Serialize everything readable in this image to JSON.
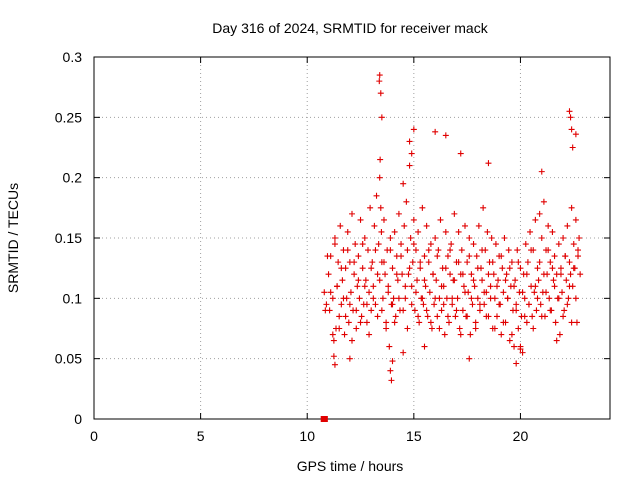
{
  "chart_data": {
    "type": "scatter",
    "title": "Day 316 of 2024, SRMTID for receiver mack",
    "xlabel": "GPS time / hours",
    "ylabel": "SRMTID / TECUs",
    "xlim": [
      0,
      24.2
    ],
    "ylim": [
      0,
      0.3
    ],
    "x_ticks": [
      0,
      5,
      10,
      15,
      20
    ],
    "x_tick_labels": [
      "0",
      "5",
      "10",
      "15",
      "20"
    ],
    "y_ticks": [
      0,
      0.05,
      0.1,
      0.15,
      0.2,
      0.25,
      0.3
    ],
    "y_tick_labels": [
      "0",
      "0.05",
      "0.1",
      "0.15",
      "0.2",
      "0.25",
      "0.3"
    ],
    "grid": true,
    "legend": "none",
    "marker": "plus",
    "color": "#e00000",
    "zero_markers": {
      "x": [
        10.75,
        10.85
      ],
      "y": [
        0,
        0
      ]
    },
    "series": [
      {
        "x": [
          10.8,
          10.9,
          11.0,
          11.05,
          11.1,
          11.2,
          11.25,
          11.3,
          11.35,
          11.4,
          11.45,
          11.5,
          11.55,
          11.6,
          11.65,
          11.7,
          11.75,
          11.8,
          11.85,
          11.9,
          11.95,
          12.0,
          12.05,
          12.1,
          12.15,
          12.2,
          12.25,
          12.3,
          12.35,
          12.4,
          12.45,
          12.5,
          12.55,
          12.6,
          12.65,
          12.7,
          12.75,
          12.8,
          12.85,
          12.9,
          12.95,
          13.0,
          13.05,
          13.1,
          13.15,
          13.2,
          13.25,
          13.3,
          13.35,
          13.4,
          13.42,
          13.45,
          13.48,
          13.5,
          13.55,
          13.6,
          13.65,
          13.7,
          13.75,
          13.8,
          13.85,
          13.9,
          13.95,
          14.0,
          14.05,
          14.1,
          14.15,
          14.2,
          14.25,
          14.3,
          14.35,
          14.4,
          14.45,
          14.5,
          14.55,
          14.6,
          14.65,
          14.7,
          14.75,
          14.8,
          14.85,
          14.9,
          14.95,
          15.0,
          15.05,
          15.1,
          15.15,
          15.2,
          15.25,
          15.3,
          15.35,
          15.4,
          15.45,
          15.5,
          15.55,
          15.6,
          15.65,
          15.7,
          15.75,
          15.8,
          15.85,
          15.9,
          15.95,
          16.0,
          16.05,
          16.1,
          16.15,
          16.2,
          16.25,
          16.3,
          16.35,
          16.4,
          16.45,
          16.5,
          16.55,
          16.6,
          16.65,
          16.7,
          16.75,
          16.8,
          16.85,
          16.9,
          16.95,
          17.0,
          17.05,
          17.1,
          17.15,
          17.2,
          17.25,
          17.3,
          17.35,
          17.4,
          17.45,
          17.5,
          17.55,
          17.6,
          17.65,
          17.7,
          17.75,
          17.8,
          17.85,
          17.9,
          17.95,
          18.0,
          18.05,
          18.1,
          18.15,
          18.2,
          18.25,
          18.3,
          18.35,
          18.4,
          18.45,
          18.5,
          18.55,
          18.6,
          18.65,
          18.7,
          18.75,
          18.8,
          18.85,
          18.9,
          18.95,
          19.0,
          19.05,
          19.1,
          19.15,
          19.2,
          19.25,
          19.3,
          19.35,
          19.4,
          19.45,
          19.5,
          19.55,
          19.6,
          19.65,
          19.7,
          19.75,
          19.8,
          19.85,
          19.9,
          19.95,
          20.0,
          20.05,
          20.1,
          20.15,
          20.2,
          20.25,
          20.3,
          20.35,
          20.4,
          20.45,
          20.5,
          20.55,
          20.6,
          20.65,
          20.7,
          20.75,
          20.8,
          20.85,
          20.9,
          20.95,
          21.0,
          21.05,
          21.1,
          21.15,
          21.2,
          21.25,
          21.3,
          21.35,
          21.4,
          21.45,
          21.5,
          21.55,
          21.6,
          21.65,
          21.7,
          21.75,
          21.8,
          21.85,
          21.9,
          21.95,
          22.0,
          22.05,
          22.1,
          22.15,
          22.2,
          22.25,
          22.3,
          22.35,
          22.4,
          22.45,
          22.5,
          22.55,
          22.6,
          22.65,
          22.7,
          22.75,
          22.8,
          10.85,
          10.95,
          11.1,
          11.2,
          11.3,
          11.4,
          11.5,
          11.6,
          11.7,
          11.8,
          11.9,
          12.0,
          12.1,
          12.2,
          12.3,
          12.4,
          12.5,
          12.6,
          12.7,
          12.8,
          12.9,
          13.0,
          13.1,
          13.2,
          13.3,
          13.4,
          13.5,
          13.6,
          13.7,
          13.8,
          13.9,
          14.0,
          14.1,
          14.2,
          14.3,
          14.4,
          14.5,
          14.6,
          14.7,
          14.8,
          14.9,
          15.0,
          15.1,
          15.2,
          15.3,
          15.4,
          15.5,
          15.6,
          15.7,
          15.8,
          15.9,
          16.0,
          16.1,
          16.2,
          16.3,
          16.4,
          16.5,
          16.6,
          16.7,
          16.8,
          16.9,
          17.0,
          17.1,
          17.2,
          17.3,
          17.4,
          17.5,
          17.6,
          17.7,
          17.8,
          17.9,
          18.0,
          18.1,
          18.2,
          18.3,
          18.4,
          18.5,
          18.6,
          18.7,
          18.8,
          18.9,
          19.0,
          19.1,
          19.2,
          19.3,
          19.4,
          19.5,
          19.6,
          19.7,
          19.8,
          19.9,
          20.0,
          20.1,
          20.2,
          20.3,
          20.4,
          20.5,
          20.6,
          20.7,
          20.8,
          20.9,
          21.0,
          21.1,
          21.2,
          21.3,
          21.4,
          21.5,
          21.6,
          21.7,
          21.8,
          21.9,
          22.0,
          22.1,
          22.2,
          22.3,
          22.4,
          22.5,
          22.6,
          22.7,
          13.4,
          13.45,
          13.5,
          13.38,
          14.8,
          14.9,
          15.0,
          22.3,
          22.35,
          22.4,
          22.45,
          22.6,
          16.0,
          16.5,
          17.2,
          21.0,
          18.5,
          12.0,
          11.3,
          11.25,
          13.9,
          13.95,
          14.0,
          19.8,
          20.0,
          14.5,
          17.6,
          15.5
        ],
        "y": [
          0.105,
          0.095,
          0.12,
          0.09,
          0.135,
          0.1,
          0.065,
          0.145,
          0.075,
          0.11,
          0.13,
          0.085,
          0.16,
          0.095,
          0.115,
          0.14,
          0.07,
          0.125,
          0.1,
          0.155,
          0.08,
          0.13,
          0.105,
          0.17,
          0.09,
          0.12,
          0.145,
          0.075,
          0.11,
          0.135,
          0.1,
          0.165,
          0.085,
          0.125,
          0.095,
          0.15,
          0.115,
          0.08,
          0.14,
          0.105,
          0.175,
          0.09,
          0.13,
          0.11,
          0.16,
          0.095,
          0.185,
          0.12,
          0.145,
          0.2,
          0.215,
          0.175,
          0.155,
          0.13,
          0.1,
          0.165,
          0.12,
          0.08,
          0.14,
          0.11,
          0.06,
          0.15,
          0.095,
          0.125,
          0.1,
          0.155,
          0.085,
          0.135,
          0.115,
          0.17,
          0.09,
          0.145,
          0.12,
          0.195,
          0.16,
          0.1,
          0.18,
          0.14,
          0.12,
          0.21,
          0.15,
          0.11,
          0.13,
          0.165,
          0.09,
          0.14,
          0.115,
          0.155,
          0.08,
          0.125,
          0.1,
          0.175,
          0.095,
          0.135,
          0.11,
          0.16,
          0.085,
          0.13,
          0.105,
          0.145,
          0.075,
          0.12,
          0.095,
          0.15,
          0.115,
          0.085,
          0.14,
          0.1,
          0.165,
          0.09,
          0.125,
          0.11,
          0.07,
          0.155,
          0.1,
          0.135,
          0.08,
          0.12,
          0.145,
          0.095,
          0.115,
          0.17,
          0.085,
          0.13,
          0.1,
          0.155,
          0.075,
          0.12,
          0.14,
          0.09,
          0.11,
          0.16,
          0.085,
          0.13,
          0.105,
          0.15,
          0.07,
          0.12,
          0.095,
          0.145,
          0.11,
          0.08,
          0.135,
          0.1,
          0.16,
          0.09,
          0.125,
          0.115,
          0.175,
          0.095,
          0.14,
          0.105,
          0.155,
          0.085,
          0.13,
          0.11,
          0.15,
          0.075,
          0.12,
          0.1,
          0.145,
          0.085,
          0.115,
          0.135,
          0.095,
          0.07,
          0.125,
          0.105,
          0.15,
          0.08,
          0.12,
          0.1,
          0.14,
          0.065,
          0.11,
          0.13,
          0.09,
          0.06,
          0.115,
          0.095,
          0.14,
          0.075,
          0.105,
          0.125,
          0.085,
          0.055,
          0.12,
          0.1,
          0.145,
          0.08,
          0.13,
          0.095,
          0.155,
          0.11,
          0.085,
          0.14,
          0.105,
          0.165,
          0.09,
          0.125,
          0.115,
          0.17,
          0.095,
          0.15,
          0.105,
          0.18,
          0.085,
          0.14,
          0.12,
          0.16,
          0.1,
          0.13,
          0.09,
          0.155,
          0.115,
          0.135,
          0.08,
          0.12,
          0.1,
          0.145,
          0.07,
          0.125,
          0.105,
          0.15,
          0.09,
          0.135,
          0.115,
          0.16,
          0.1,
          0.13,
          0.12,
          0.175,
          0.11,
          0.145,
          0.125,
          0.165,
          0.08,
          0.135,
          0.15,
          0.12,
          0.09,
          0.135,
          0.105,
          0.07,
          0.15,
          0.11,
          0.075,
          0.125,
          0.1,
          0.085,
          0.14,
          0.095,
          0.065,
          0.13,
          0.09,
          0.115,
          0.08,
          0.145,
          0.11,
          0.095,
          0.07,
          0.125,
          0.1,
          0.14,
          0.085,
          0.115,
          0.09,
          0.13,
          0.075,
          0.105,
          0.14,
          0.095,
          0.08,
          0.12,
          0.1,
          0.135,
          0.09,
          0.11,
          0.075,
          0.125,
          0.095,
          0.145,
          0.105,
          0.085,
          0.13,
          0.1,
          0.115,
          0.09,
          0.14,
          0.08,
          0.12,
          0.1,
          0.135,
          0.075,
          0.11,
          0.095,
          0.125,
          0.085,
          0.14,
          0.1,
          0.115,
          0.09,
          0.13,
          0.07,
          0.12,
          0.105,
          0.085,
          0.135,
          0.1,
          0.115,
          0.075,
          0.125,
          0.095,
          0.14,
          0.105,
          0.085,
          0.12,
          0.1,
          0.13,
          0.075,
          0.11,
          0.095,
          0.135,
          0.08,
          0.115,
          0.1,
          0.125,
          0.07,
          0.11,
          0.09,
          0.13,
          0.06,
          0.105,
          0.085,
          0.12,
          0.095,
          0.14,
          0.075,
          0.11,
          0.1,
          0.13,
          0.085,
          0.12,
          0.105,
          0.14,
          0.09,
          0.125,
          0.11,
          0.065,
          0.1,
          0.12,
          0.085,
          0.135,
          0.095,
          0.11,
          0.08,
          0.125,
          0.1,
          0.14,
          0.285,
          0.27,
          0.25,
          0.28,
          0.23,
          0.22,
          0.24,
          0.255,
          0.25,
          0.24,
          0.225,
          0.236,
          0.238,
          0.235,
          0.22,
          0.205,
          0.212,
          0.05,
          0.045,
          0.052,
          0.04,
          0.032,
          0.048,
          0.046,
          0.058,
          0.055,
          0.05,
          0.06
        ]
      }
    ]
  }
}
